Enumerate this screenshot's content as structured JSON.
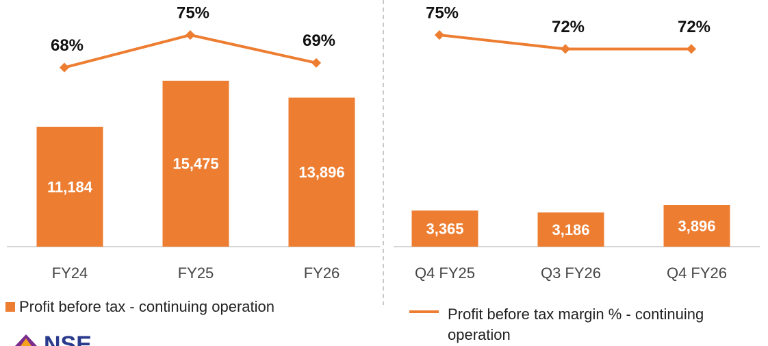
{
  "chart_data": [
    {
      "type": "combo",
      "categories": [
        "FY24",
        "FY25",
        "FY26"
      ],
      "ylim": [
        0,
        20000
      ],
      "y2lim": [
        29.5,
        75.6
      ],
      "series": [
        {
          "name": "Profit before tax - continuing operation",
          "type": "bar",
          "color": "#ed7d31",
          "values": [
            11184,
            15475,
            13896
          ],
          "value_labels": [
            "11,184",
            "15,475",
            "13,896"
          ]
        },
        {
          "type": "line",
          "axis": "y2",
          "color": "#ed7d31",
          "values": [
            68,
            75,
            69
          ],
          "value_labels": [
            "68%",
            "75%",
            "69%"
          ]
        }
      ]
    },
    {
      "type": "combo",
      "categories": [
        "Q4 FY25",
        "Q3 FY26",
        "Q4 FY26"
      ],
      "ylim": [
        0,
        20000
      ],
      "y2lim": [
        29.5,
        75.6
      ],
      "series": [
        {
          "type": "bar",
          "color": "#ed7d31",
          "values": [
            3365,
            3186,
            3896
          ],
          "value_labels": [
            "3,365",
            "3,186",
            "3,896"
          ]
        },
        {
          "name": "Profit before tax margin % - continuing operation",
          "type": "line",
          "axis": "y2",
          "color": "#ed7d31",
          "values": [
            75,
            72,
            72
          ],
          "value_labels": [
            "75%",
            "72%",
            "72%"
          ]
        }
      ]
    }
  ],
  "logo_text": "NSE"
}
